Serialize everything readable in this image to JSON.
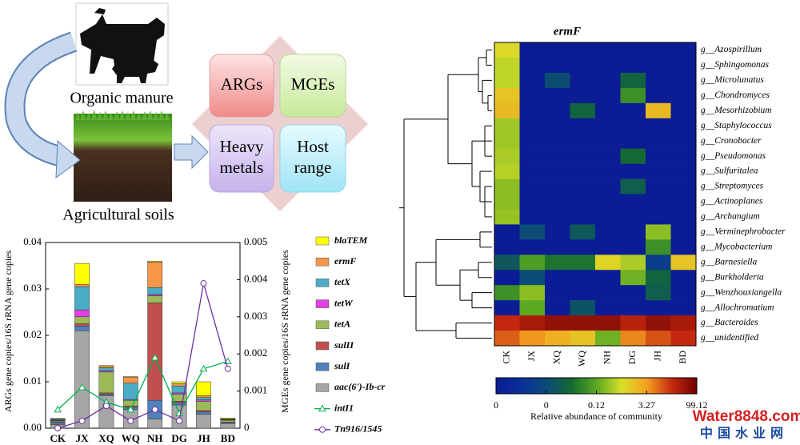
{
  "diagram": {
    "source": "Organic manure",
    "soil": "Agricultural soils",
    "boxes": [
      {
        "lines": [
          "ARGs"
        ]
      },
      {
        "lines": [
          "MGEs"
        ]
      },
      {
        "lines": [
          "Heavy",
          "metals"
        ]
      },
      {
        "lines": [
          "Host",
          "range"
        ]
      }
    ]
  },
  "watermark": {
    "site": "Water8848.com",
    "name": "中国水业网"
  },
  "chart_data": [
    {
      "type": "bar",
      "stacked": true,
      "categories": [
        "CK",
        "JX",
        "XQ",
        "WQ",
        "NH",
        "DG",
        "JH",
        "BD"
      ],
      "ylabel": "ARGs gene copies/16S rRNA gene copies",
      "y2label": "MGEs gene copies/16S rRNA gene copies",
      "ylim": [
        0,
        0.04
      ],
      "yticks": [
        {
          "value": 0,
          "label": "0.00"
        },
        0.01,
        0.02,
        0.03,
        0.04
      ],
      "y2lim": [
        0,
        0.005
      ],
      "y2ticks": [
        0,
        0.001,
        0.002,
        0.003,
        0.004,
        0.005
      ],
      "series": [
        {
          "name": "aac(6')-Ib-cr",
          "color": "#a6a6a6",
          "values": [
            0.0008,
            0.021,
            0.007,
            0.004,
            0.002,
            0.005,
            0.003,
            0.001
          ]
        },
        {
          "name": "sulI",
          "color": "#4f81bd",
          "values": [
            0.0004,
            0.001,
            0.0003,
            0.0005,
            0.004,
            0.0005,
            0.0005,
            0.0002
          ]
        },
        {
          "name": "sulII",
          "color": "#c0504d",
          "values": [
            0.0002,
            0.0005,
            0.0003,
            0.0003,
            0.021,
            0.0003,
            0.0003,
            0.0001
          ]
        },
        {
          "name": "tetA",
          "color": "#9bbb59",
          "values": [
            0.0002,
            0.0015,
            0.0045,
            0.0012,
            0.0015,
            0.0015,
            0.002,
            0.0004
          ]
        },
        {
          "name": "tetW",
          "color": "#e040e0",
          "values": [
            0.0001,
            0.0015,
            0.0003,
            0.0002,
            0.0003,
            0.0003,
            0.0003,
            0.0001
          ]
        },
        {
          "name": "tetX",
          "color": "#4bacc6",
          "values": [
            0.0002,
            0.005,
            0.0006,
            0.0035,
            0.0015,
            0.0015,
            0.0005,
            0.0001
          ]
        },
        {
          "name": "ermF",
          "color": "#f79646",
          "values": [
            0.0001,
            0.0005,
            0.0003,
            0.0013,
            0.0055,
            0.0005,
            0.0004,
            0.0001
          ]
        },
        {
          "name": "blaTEM",
          "color": "#ffff00",
          "values": [
            0.0001,
            0.0045,
            0.0002,
            0.0001,
            0.0002,
            0.0004,
            0.003,
            0.0002
          ]
        },
        {
          "name": "intI1",
          "color": "#00b050",
          "axis": "y2",
          "marker": "triangle",
          "values": [
            0.0005,
            0.0011,
            0.0007,
            0.0005,
            0.0019,
            0.0004,
            0.0016,
            0.0018
          ]
        },
        {
          "name": "Tn916/1545",
          "color": "#7030a0",
          "axis": "y2",
          "marker": "circle",
          "values": [
            0,
            0.0002,
            0.0006,
            0.0002,
            0.0005,
            0.0002,
            0.0039,
            0.0016
          ]
        }
      ]
    },
    {
      "type": "heatmap",
      "title": "ermF",
      "x": [
        "CK",
        "JX",
        "XQ",
        "WQ",
        "NH",
        "DG",
        "JH",
        "BD"
      ],
      "y": [
        "g__Azospirillum",
        "g__Sphingomonas",
        "g__Microlunatus",
        "g__Chondromyces",
        "g__Mesorhizobium",
        "g__Staphylococcus",
        "g__Cronobacter",
        "g__Pseudomonas",
        "g__Sulfuritalea",
        "g__Streptomyces",
        "g__Actinoplanes",
        "g__Archangium",
        "g__Verminephrobacter",
        "g__Mycobacterium",
        "g__Barnesiella",
        "g__Burkholderia",
        "g__Wenzhouxiangella",
        "g__Allochromatium",
        "g__Bacteroides",
        "g__unidentified"
      ],
      "values": [
        [
          1.88,
          0,
          0,
          0,
          0,
          0,
          0,
          0
        ],
        [
          1.38,
          0,
          0,
          0,
          0,
          0,
          0,
          0
        ],
        [
          1.38,
          0,
          0.01,
          0,
          0,
          0.05,
          0,
          0
        ],
        [
          2.39,
          0,
          0,
          0,
          0,
          0.097,
          0,
          0
        ],
        [
          2.64,
          0,
          0,
          0.05,
          0,
          0,
          2.64,
          0
        ],
        [
          1.0,
          0,
          0,
          0,
          0,
          0,
          0,
          0
        ],
        [
          1.0,
          0,
          0,
          0,
          0,
          0,
          0,
          0
        ],
        [
          1.13,
          0,
          0,
          0,
          0,
          0.06,
          0,
          0
        ],
        [
          1.26,
          0,
          0,
          0,
          0,
          0,
          0,
          0
        ],
        [
          0.75,
          0,
          0,
          0,
          0,
          0.04,
          0,
          0
        ],
        [
          0.75,
          0,
          0,
          0,
          0,
          0,
          0,
          0
        ],
        [
          0.88,
          0,
          0,
          0,
          0,
          0,
          0,
          0
        ],
        [
          0,
          0.008,
          0,
          0.03,
          0,
          0,
          0.75,
          0
        ],
        [
          0,
          0,
          0,
          0,
          0,
          0,
          0.097,
          0
        ],
        [
          0.027,
          0.11,
          0.07,
          0.07,
          2.0,
          1.13,
          0.003,
          2.39
        ],
        [
          0,
          0.006,
          0,
          0,
          0,
          0.37,
          0.05,
          0
        ],
        [
          0.097,
          0.75,
          0,
          0,
          0,
          0,
          0.04,
          0
        ],
        [
          0,
          0.15,
          0,
          0.02,
          0,
          0,
          0,
          0
        ],
        [
          53,
          68,
          80,
          80,
          80,
          60,
          80,
          68
        ],
        [
          30,
          7,
          2.9,
          2.4,
          0.37,
          14,
          35,
          53
        ]
      ],
      "colorbar": {
        "label": "Relative abundance of community",
        "ticks": [
          0,
          {
            "value": 0.004,
            "label": "0"
          },
          0.12,
          3.27,
          99.12
        ],
        "colors": [
          "#0b1c95",
          "#0b2f9a",
          "#0b4a7a",
          "#146a30",
          "#5aa822",
          "#d8e028",
          "#f5a020",
          "#c62a10",
          "#700000"
        ]
      }
    }
  ]
}
